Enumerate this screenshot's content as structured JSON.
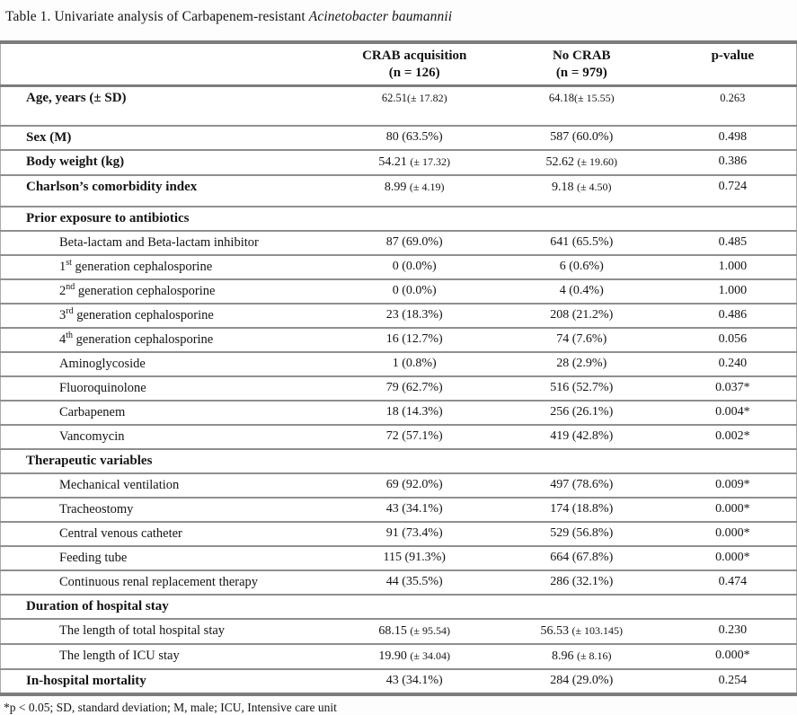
{
  "caption": {
    "text": "Table 1. Univariate analysis of Carbapenem-resistant ",
    "species_italic": "Acinetobacter baumannii"
  },
  "table": {
    "columns": [
      {
        "label": "",
        "sub": ""
      },
      {
        "label": "CRAB acquisition",
        "sub": "(n = 126)"
      },
      {
        "label": "No CRAB",
        "sub": "(n = 979)"
      },
      {
        "label": "p-value",
        "sub": ""
      }
    ],
    "rows": [
      {
        "label": "Age, years (± SD)",
        "bold": true,
        "crab": "62.51(± 17.82)",
        "no_crab": "64.18(± 15.55)",
        "p": "0.263",
        "extra_space": "lg",
        "small_values": true
      },
      {
        "label": "Sex (M)",
        "bold": true,
        "crab": "80 (63.5%)",
        "no_crab": "587 (60.0%)",
        "p": "0.498"
      },
      {
        "label": "Body weight (kg)",
        "bold": true,
        "crab": "54.21 (± 17.32)",
        "no_crab": "52.62 (± 19.60)",
        "p": "0.386"
      },
      {
        "label": "Charlson’s comorbidity index",
        "bold": true,
        "crab": "8.99 (± 4.19)",
        "no_crab": "9.18 (± 4.50)",
        "p": "0.724",
        "extra_space": "sm"
      },
      {
        "label": "Prior exposure to antibiotics",
        "bold": true,
        "section": true,
        "crab": "",
        "no_crab": "",
        "p": ""
      },
      {
        "label": "Beta-lactam and Beta-lactam inhibitor",
        "indent": true,
        "crab": "87 (69.0%)",
        "no_crab": "641 (65.5%)",
        "p": "0.485"
      },
      {
        "label": "1st generation cephalosporine",
        "indent": true,
        "ordinal": true,
        "crab": "0 (0.0%)",
        "no_crab": "6 (0.6%)",
        "p": "1.000"
      },
      {
        "label": "2nd generation cephalosporine",
        "indent": true,
        "ordinal": true,
        "crab": "0 (0.0%)",
        "no_crab": "4 (0.4%)",
        "p": "1.000"
      },
      {
        "label": "3rd generation cephalosporine",
        "indent": true,
        "ordinal": true,
        "crab": "23 (18.3%)",
        "no_crab": "208 (21.2%)",
        "p": "0.486"
      },
      {
        "label": "4th generation cephalosporine",
        "indent": true,
        "ordinal": true,
        "crab": "16 (12.7%)",
        "no_crab": "74 (7.6%)",
        "p": "0.056"
      },
      {
        "label": "Aminoglycoside",
        "indent": true,
        "crab": "1 (0.8%)",
        "no_crab": "28 (2.9%)",
        "p": "0.240"
      },
      {
        "label": "Fluoroquinolone",
        "indent": true,
        "crab": "79 (62.7%)",
        "no_crab": "516 (52.7%)",
        "p": "0.037*"
      },
      {
        "label": "Carbapenem",
        "indent": true,
        "crab": "18 (14.3%)",
        "no_crab": "256 (26.1%)",
        "p": "0.004*"
      },
      {
        "label": "Vancomycin",
        "indent": true,
        "crab": "72 (57.1%)",
        "no_crab": "419 (42.8%)",
        "p": "0.002*"
      },
      {
        "label": "Therapeutic variables",
        "bold": true,
        "section": true,
        "crab": "",
        "no_crab": "",
        "p": ""
      },
      {
        "label": "Mechanical ventilation",
        "indent": true,
        "crab": "69 (92.0%)",
        "no_crab": "497 (78.6%)",
        "p": "0.009*"
      },
      {
        "label": "Tracheostomy",
        "indent": true,
        "crab": "43 (34.1%)",
        "no_crab": "174 (18.8%)",
        "p": "0.000*"
      },
      {
        "label": "Central venous catheter",
        "indent": true,
        "crab": "91 (73.4%)",
        "no_crab": "529 (56.8%)",
        "p": "0.000*"
      },
      {
        "label": "Feeding tube",
        "indent": true,
        "crab": "115 (91.3%)",
        "no_crab": "664 (67.8%)",
        "p": "0.000*"
      },
      {
        "label": "Continuous renal replacement therapy",
        "indent": true,
        "crab": "44 (35.5%)",
        "no_crab": "286 (32.1%)",
        "p": "0.474"
      },
      {
        "label": "Duration of hospital stay",
        "bold": true,
        "section": true,
        "crab": "",
        "no_crab": "",
        "p": ""
      },
      {
        "label": "The length of total hospital stay",
        "indent": true,
        "crab": "68.15 (± 95.54)",
        "no_crab": "56.53 (± 103.145)",
        "p": "0.230"
      },
      {
        "label": "The length of ICU stay",
        "indent": true,
        "crab": "19.90 (± 34.04)",
        "no_crab": "8.96 (± 8.16)",
        "p": "0.000*"
      },
      {
        "label": "In-hospital mortality",
        "bold": true,
        "crab": "43 (34.1%)",
        "no_crab": "284 (29.0%)",
        "p": "0.254"
      }
    ]
  },
  "footnote": "*p < 0.05; SD, standard deviation; M, male; ICU, Intensive care unit",
  "colors": {
    "rule_heavy": "#7c7c7c",
    "rule_light": "#8f8f8f",
    "text": "#141414",
    "background": "#fdfdfd"
  }
}
